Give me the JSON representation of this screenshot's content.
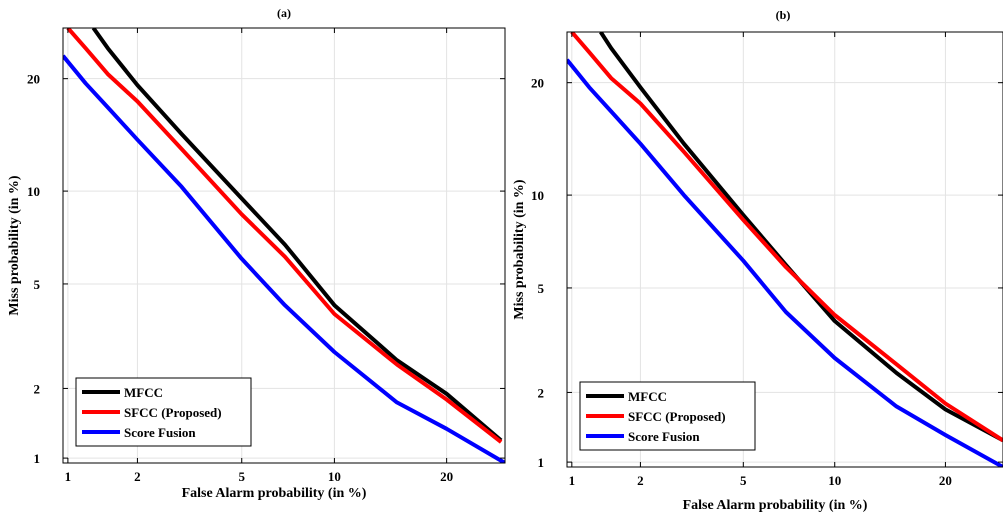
{
  "chart_data": [
    {
      "type": "line",
      "title": "(a)",
      "xlabel": "False Alarm probability (in %)",
      "ylabel": "Miss probability (in %)",
      "xscale": "probit",
      "yscale": "probit",
      "xlim": [
        0.95,
        27
      ],
      "ylim": [
        0.95,
        26
      ],
      "xticks": [
        1,
        2,
        5,
        10,
        20
      ],
      "yticks": [
        1,
        2,
        5,
        10,
        20
      ],
      "grid": true,
      "legend_position": "bottom-left",
      "series": [
        {
          "name": "MFCC",
          "color": "#000000",
          "x": [
            1.3,
            1.5,
            2,
            3,
            5,
            7,
            10,
            15,
            20,
            26.5
          ],
          "y": [
            26,
            23.5,
            19.3,
            14.5,
            9.5,
            6.8,
            4.2,
            2.6,
            1.9,
            1.2
          ]
        },
        {
          "name": "SFCC (Proposed)",
          "color": "#ff0000",
          "x": [
            1.0,
            1.2,
            1.5,
            2,
            3,
            5,
            7,
            10,
            15,
            20,
            26.5
          ],
          "y": [
            26,
            23.5,
            20.5,
            17.6,
            13.2,
            8.5,
            6.2,
            3.9,
            2.5,
            1.8,
            1.18
          ]
        },
        {
          "name": "Score Fusion",
          "color": "#0000ff",
          "x": [
            0.95,
            1.2,
            1.5,
            2,
            3,
            5,
            7,
            10,
            15,
            20,
            27
          ],
          "y": [
            22.6,
            19.5,
            17,
            14,
            10.3,
            6.1,
            4.2,
            2.8,
            1.75,
            1.35,
            0.95
          ]
        }
      ]
    },
    {
      "type": "line",
      "title": "(b)",
      "xlabel": "False Alarm probability (in %)",
      "ylabel": "Miss probability (in %)",
      "xscale": "probit",
      "yscale": "probit",
      "xlim": [
        0.95,
        27
      ],
      "ylim": [
        0.95,
        26
      ],
      "xticks": [
        1,
        2,
        5,
        10,
        20
      ],
      "yticks": [
        1,
        2,
        5,
        10,
        20
      ],
      "grid": true,
      "legend_position": "bottom-left",
      "series": [
        {
          "name": "MFCC",
          "color": "#000000",
          "x": [
            1.35,
            1.5,
            2,
            3,
            5,
            7,
            10,
            15,
            20,
            27
          ],
          "y": [
            26,
            24,
            19.5,
            14,
            8.7,
            6.0,
            3.8,
            2.4,
            1.7,
            1.25
          ]
        },
        {
          "name": "SFCC (Proposed)",
          "color": "#ff0000",
          "x": [
            1.0,
            1.2,
            1.5,
            2,
            3,
            5,
            7,
            10,
            15,
            20,
            27
          ],
          "y": [
            26,
            23.5,
            20.5,
            17.8,
            13.3,
            8.4,
            5.9,
            4.0,
            2.6,
            1.8,
            1.25
          ]
        },
        {
          "name": "Score Fusion",
          "color": "#0000ff",
          "x": [
            0.95,
            1.2,
            1.5,
            2,
            3,
            5,
            7,
            10,
            15,
            20,
            27
          ],
          "y": [
            22.6,
            19.5,
            17,
            14,
            10,
            6.2,
            4.1,
            2.75,
            1.75,
            1.32,
            0.95
          ]
        }
      ]
    }
  ]
}
